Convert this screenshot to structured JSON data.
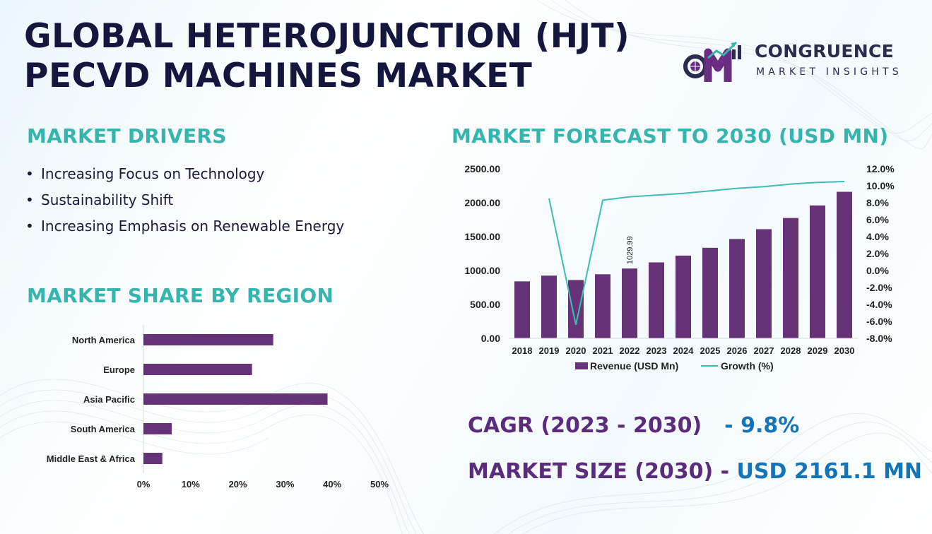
{
  "title": {
    "line1": "GLOBAL HETEROJUNCTION (HJT)",
    "line2": "PECVD MACHINES MARKET"
  },
  "logo": {
    "name": "CONGRUENCE",
    "tagline": "MARKET INSIGHTS",
    "icon": "cm-chart-logo-icon"
  },
  "drivers": {
    "heading": "MARKET DRIVERS",
    "bullet": "•",
    "items": [
      "Increasing Focus on Technology",
      "Sustainability Shift",
      "Increasing Emphasis on Renewable Energy"
    ]
  },
  "region": {
    "heading": "MARKET SHARE BY REGION"
  },
  "forecast": {
    "heading": "MARKET FORECAST TO 2030 (USD MN)"
  },
  "kpis": {
    "cagr_label": "CAGR (2023 - 2030)",
    "cagr_value": "- 9.8%",
    "size_label": "MARKET SIZE (2030) -",
    "size_value": "USD 2161.1 MN"
  },
  "colors": {
    "bar": "#663278",
    "line": "#3fbdb5",
    "accent": "#36b5ae",
    "navy": "#15163d",
    "purple": "#5b2c7c",
    "blue": "#1474b8"
  },
  "chart_data": [
    {
      "type": "bar",
      "orientation": "horizontal",
      "title": "MARKET SHARE BY REGION",
      "categories": [
        "North America",
        "Europe",
        "Asia Pacific",
        "South America",
        "Middle East & Africa"
      ],
      "values": [
        27.5,
        23,
        39,
        6,
        4
      ],
      "xlim": [
        0,
        50
      ],
      "xticks": [
        "0%",
        "10%",
        "20%",
        "30%",
        "40%",
        "50%"
      ]
    },
    {
      "type": "bar",
      "title": "MARKET FORECAST TO 2030 (USD MN)",
      "categories": [
        "2018",
        "2019",
        "2020",
        "2021",
        "2022",
        "2023",
        "2024",
        "2025",
        "2026",
        "2027",
        "2028",
        "2029",
        "2030"
      ],
      "series": [
        {
          "name": "Revenue (USD Mn)",
          "type": "bar",
          "axis": "left",
          "values": [
            840,
            925,
            860,
            945,
            1029.99,
            1120,
            1220,
            1335,
            1465,
            1610,
            1775,
            1960,
            2161.1
          ]
        },
        {
          "name": "Growth (%)",
          "type": "line",
          "axis": "right",
          "values": [
            null,
            8.5,
            -6.4,
            8.3,
            8.7,
            8.9,
            9.1,
            9.4,
            9.7,
            9.9,
            10.2,
            10.4,
            10.5
          ]
        }
      ],
      "data_labels": [
        {
          "category": "2022",
          "text": "1029.99"
        }
      ],
      "ylim_left": [
        0,
        2500
      ],
      "yticks_left": [
        "0.00",
        "500.00",
        "1000.00",
        "1500.00",
        "2000.00",
        "2500.00"
      ],
      "ylim_right": [
        -8,
        12
      ],
      "yticks_right": [
        "-8.0%",
        "-6.0%",
        "-4.0%",
        "-2.0%",
        "0.0%",
        "2.0%",
        "4.0%",
        "6.0%",
        "8.0%",
        "10.0%",
        "12.0%"
      ],
      "legend": [
        "Revenue (USD Mn)",
        "Growth (%)"
      ],
      "legend_position": "bottom"
    }
  ]
}
